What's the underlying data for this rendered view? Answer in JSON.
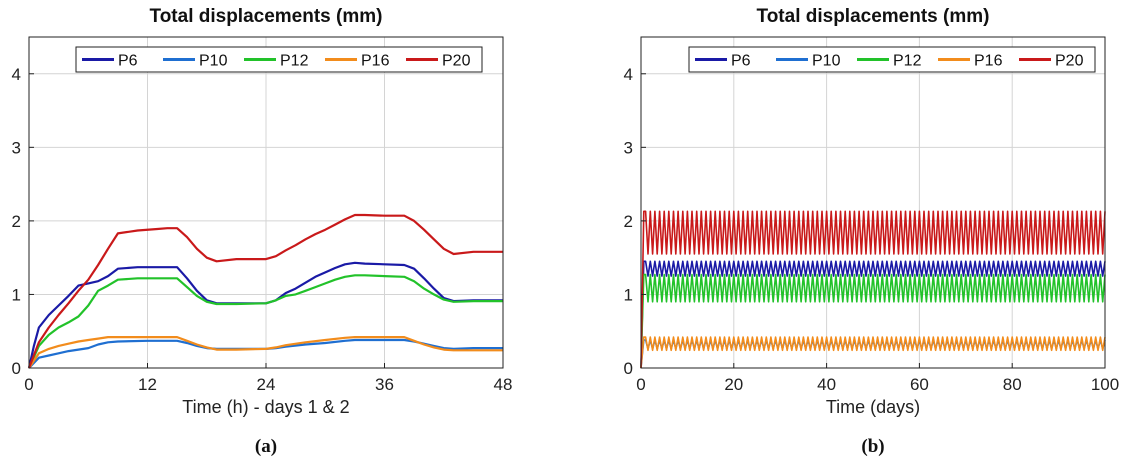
{
  "chart_data": [
    {
      "type": "line",
      "panel_label": "(a)",
      "title": "Total displacements (mm)",
      "xlabel": "Time (h) - days 1 & 2",
      "ylabel": "",
      "xlim": [
        0,
        48
      ],
      "ylim": [
        0,
        4.5
      ],
      "xticks": [
        0,
        12,
        24,
        36,
        48
      ],
      "yticks": [
        0,
        1,
        2,
        3,
        4
      ],
      "grid": true,
      "legend": "top, horizontal",
      "series": [
        {
          "name": "P6",
          "color": "#1a1aa6",
          "x": [
            0,
            0.5,
            1,
            2,
            3,
            4,
            5,
            6,
            7,
            8,
            9,
            11,
            13,
            15,
            16,
            17,
            18,
            19,
            21,
            24,
            25,
            26,
            27,
            28,
            29,
            30,
            31,
            32,
            33,
            34,
            36,
            38,
            39,
            40,
            41,
            42,
            43,
            45,
            48
          ],
          "y": [
            0,
            0.3,
            0.55,
            0.72,
            0.85,
            0.98,
            1.12,
            1.15,
            1.18,
            1.25,
            1.35,
            1.37,
            1.37,
            1.37,
            1.22,
            1.05,
            0.92,
            0.88,
            0.88,
            0.88,
            0.92,
            1.02,
            1.08,
            1.16,
            1.24,
            1.3,
            1.36,
            1.41,
            1.43,
            1.42,
            1.41,
            1.4,
            1.35,
            1.22,
            1.08,
            0.95,
            0.91,
            0.92,
            0.92
          ]
        },
        {
          "name": "P10",
          "color": "#1f6fd1",
          "x": [
            0,
            1,
            2,
            3,
            4,
            5,
            6,
            7,
            8,
            9,
            12,
            15,
            16,
            17,
            18,
            19,
            21,
            24,
            25,
            26,
            28,
            30,
            32,
            33,
            36,
            38,
            39,
            40,
            41,
            42,
            43,
            45,
            48
          ],
          "y": [
            0,
            0.14,
            0.17,
            0.2,
            0.23,
            0.25,
            0.27,
            0.32,
            0.35,
            0.36,
            0.37,
            0.37,
            0.34,
            0.3,
            0.27,
            0.26,
            0.26,
            0.26,
            0.27,
            0.29,
            0.32,
            0.34,
            0.37,
            0.38,
            0.38,
            0.38,
            0.36,
            0.33,
            0.3,
            0.27,
            0.26,
            0.27,
            0.27
          ]
        },
        {
          "name": "P12",
          "color": "#22c22a",
          "x": [
            0,
            1,
            2,
            3,
            4,
            5,
            6,
            7,
            8,
            9,
            11,
            13,
            15,
            16,
            17,
            18,
            19,
            21,
            24,
            25,
            26,
            27,
            28,
            29,
            30,
            31,
            32,
            33,
            34,
            36,
            38,
            39,
            40,
            41,
            42,
            43,
            45,
            48
          ],
          "y": [
            0,
            0.3,
            0.45,
            0.55,
            0.62,
            0.7,
            0.85,
            1.05,
            1.12,
            1.2,
            1.22,
            1.22,
            1.22,
            1.1,
            0.98,
            0.9,
            0.87,
            0.87,
            0.88,
            0.92,
            0.98,
            1.0,
            1.05,
            1.1,
            1.15,
            1.2,
            1.24,
            1.26,
            1.26,
            1.25,
            1.24,
            1.18,
            1.08,
            1.0,
            0.93,
            0.9,
            0.91,
            0.91
          ]
        },
        {
          "name": "P16",
          "color": "#f28c1c",
          "x": [
            0,
            1,
            2,
            3,
            4,
            5,
            6,
            7,
            8,
            9,
            12,
            15,
            16,
            17,
            18,
            19,
            21,
            24,
            25,
            26,
            28,
            30,
            32,
            33,
            36,
            38,
            39,
            40,
            41,
            42,
            43,
            45,
            48
          ],
          "y": [
            0,
            0.2,
            0.26,
            0.3,
            0.33,
            0.36,
            0.38,
            0.4,
            0.42,
            0.42,
            0.42,
            0.42,
            0.37,
            0.32,
            0.28,
            0.25,
            0.25,
            0.26,
            0.28,
            0.31,
            0.35,
            0.38,
            0.41,
            0.42,
            0.42,
            0.42,
            0.37,
            0.32,
            0.28,
            0.25,
            0.24,
            0.24,
            0.24
          ]
        },
        {
          "name": "P20",
          "color": "#c9191a",
          "x": [
            0,
            1,
            2,
            3,
            4,
            5,
            6,
            7,
            8,
            9,
            11,
            13,
            14,
            15,
            16,
            17,
            18,
            19,
            21,
            24,
            25,
            26,
            27,
            28,
            29,
            30,
            31,
            32,
            33,
            34,
            36,
            38,
            39,
            40,
            41,
            42,
            43,
            45,
            48
          ],
          "y": [
            0,
            0.35,
            0.55,
            0.72,
            0.88,
            1.05,
            1.2,
            1.4,
            1.62,
            1.83,
            1.87,
            1.89,
            1.9,
            1.9,
            1.78,
            1.62,
            1.5,
            1.45,
            1.48,
            1.48,
            1.52,
            1.6,
            1.67,
            1.75,
            1.82,
            1.88,
            1.95,
            2.02,
            2.08,
            2.08,
            2.07,
            2.07,
            2.0,
            1.88,
            1.75,
            1.62,
            1.55,
            1.58,
            1.58
          ]
        }
      ]
    },
    {
      "type": "line",
      "panel_label": "(b)",
      "title": "Total displacements (mm)",
      "xlabel": "Time (days)",
      "ylabel": "",
      "xlim": [
        0,
        100
      ],
      "ylim": [
        0,
        4.5
      ],
      "xticks": [
        0,
        20,
        40,
        60,
        80,
        100
      ],
      "yticks": [
        0,
        1,
        2,
        3,
        4
      ],
      "grid": true,
      "legend": "top-right, horizontal",
      "cycle_period_days": 1,
      "series": [
        {
          "name": "P6",
          "color": "#1a1aa6",
          "start": 0,
          "min": 1.25,
          "max": 1.45
        },
        {
          "name": "P10",
          "color": "#1f6fd1",
          "start": 0,
          "min": 0.26,
          "max": 0.38
        },
        {
          "name": "P12",
          "color": "#22c22a",
          "start": 0,
          "min": 0.9,
          "max": 1.27
        },
        {
          "name": "P16",
          "color": "#f28c1c",
          "start": 0,
          "min": 0.24,
          "max": 0.42
        },
        {
          "name": "P20",
          "color": "#c9191a",
          "start": 0,
          "min": 1.55,
          "max": 2.13
        }
      ]
    }
  ]
}
